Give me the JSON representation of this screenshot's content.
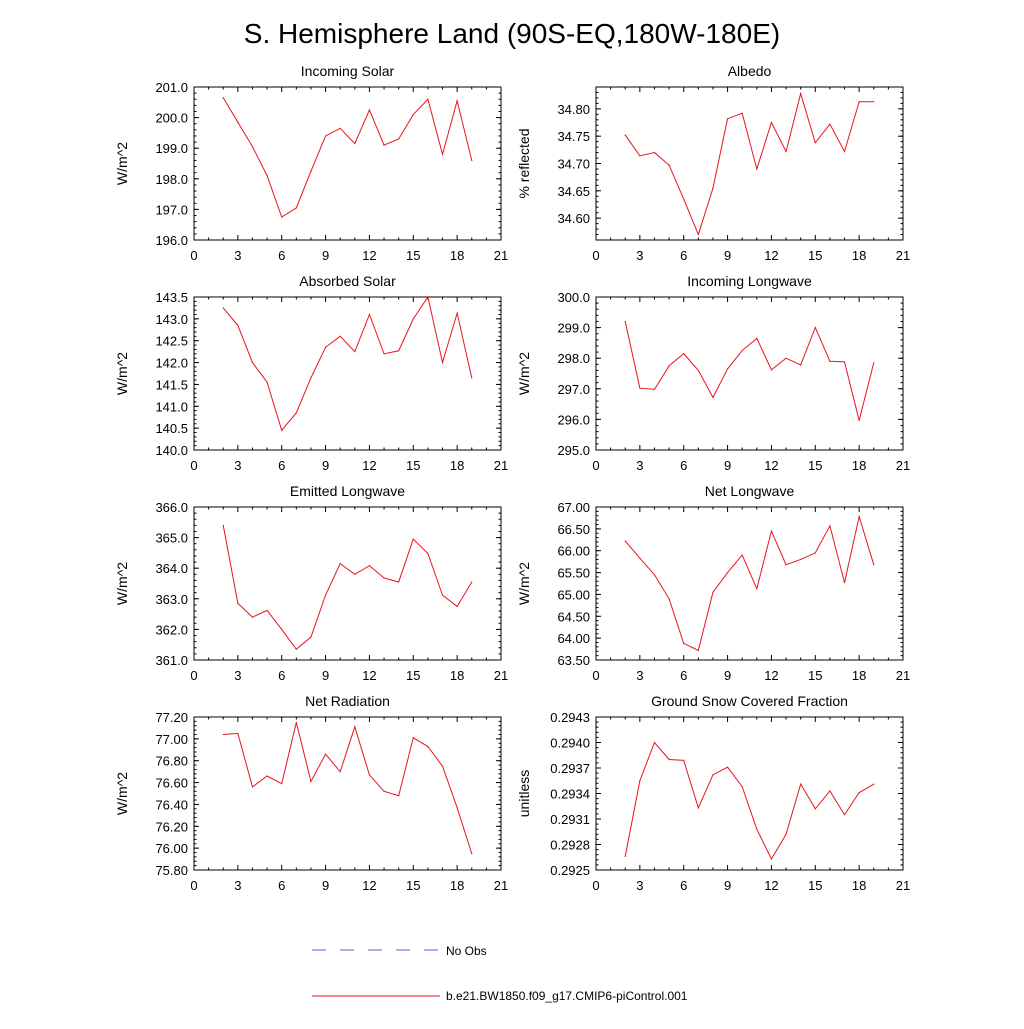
{
  "title": "S. Hemisphere Land (90S-EQ,180W-180E)",
  "legend": {
    "items": [
      {
        "label": "No Obs",
        "style": "dashed",
        "color": "#5b5bd6"
      },
      {
        "label": "b.e21.BW1850.f09_g17.CMIP6-piControl.001",
        "style": "solid",
        "color": "#e8141c"
      }
    ]
  },
  "chart_data": [
    {
      "type": "line",
      "title": "Incoming Solar",
      "xlabel": "",
      "ylabel": "W/m^2",
      "xlim": [
        0,
        21
      ],
      "ylim": [
        196.0,
        201.0
      ],
      "xticks": [
        0,
        3,
        6,
        9,
        12,
        15,
        18,
        21
      ],
      "yticks": [
        196.0,
        197.0,
        198.0,
        199.0,
        200.0,
        201.0
      ],
      "ytick_labels": [
        "196.0",
        "197.0",
        "198.0",
        "199.0",
        "200.0",
        "201.0"
      ],
      "series": [
        {
          "name": "b.e21.BW1850.f09_g17.CMIP6-piControl.001",
          "color": "#e8141c",
          "x": [
            2,
            3,
            4,
            5,
            6,
            7,
            8,
            9,
            10,
            11,
            12,
            13,
            14,
            15,
            16,
            17,
            18,
            19
          ],
          "y": [
            200.65,
            199.85,
            199.05,
            198.1,
            196.75,
            197.05,
            198.25,
            199.4,
            199.65,
            199.15,
            200.25,
            199.1,
            199.3,
            200.1,
            200.6,
            198.8,
            200.55,
            198.6
          ]
        }
      ]
    },
    {
      "type": "line",
      "title": "Albedo",
      "xlabel": "",
      "ylabel": "% reflected",
      "xlim": [
        0,
        21
      ],
      "ylim": [
        34.56,
        34.84
      ],
      "xticks": [
        0,
        3,
        6,
        9,
        12,
        15,
        18,
        21
      ],
      "yticks": [
        34.6,
        34.65,
        34.7,
        34.75,
        34.8
      ],
      "ytick_labels": [
        "34.60",
        "34.65",
        "34.70",
        "34.75",
        "34.80"
      ],
      "series": [
        {
          "name": "b.e21.BW1850.f09_g17.CMIP6-piControl.001",
          "color": "#e8141c",
          "x": [
            2,
            3,
            4,
            5,
            6,
            7,
            8,
            9,
            10,
            11,
            12,
            13,
            14,
            15,
            16,
            17,
            18,
            19
          ],
          "y": [
            34.752,
            34.714,
            34.72,
            34.697,
            34.635,
            34.57,
            34.655,
            34.782,
            34.792,
            34.69,
            34.775,
            34.722,
            34.828,
            34.738,
            34.772,
            34.722,
            34.813,
            34.813
          ]
        }
      ]
    },
    {
      "type": "line",
      "title": "Absorbed Solar",
      "xlabel": "",
      "ylabel": "W/m^2",
      "xlim": [
        0,
        21
      ],
      "ylim": [
        140.0,
        143.5
      ],
      "xticks": [
        0,
        3,
        6,
        9,
        12,
        15,
        18,
        21
      ],
      "yticks": [
        140.0,
        140.5,
        141.0,
        141.5,
        142.0,
        142.5,
        143.0,
        143.5
      ],
      "ytick_labels": [
        "140.0",
        "140.5",
        "141.0",
        "141.5",
        "142.0",
        "142.5",
        "143.0",
        "143.5"
      ],
      "series": [
        {
          "name": "b.e21.BW1850.f09_g17.CMIP6-piControl.001",
          "color": "#e8141c",
          "x": [
            2,
            3,
            4,
            5,
            6,
            7,
            8,
            9,
            10,
            11,
            12,
            13,
            14,
            15,
            16,
            17,
            18,
            19
          ],
          "y": [
            143.25,
            142.85,
            142.0,
            141.55,
            140.45,
            140.85,
            141.65,
            142.35,
            142.6,
            142.25,
            143.1,
            142.2,
            142.27,
            143.0,
            143.5,
            142.0,
            143.13,
            141.65
          ]
        }
      ]
    },
    {
      "type": "line",
      "title": "Incoming Longwave",
      "xlabel": "",
      "ylabel": "W/m^2",
      "xlim": [
        0,
        21
      ],
      "ylim": [
        295.0,
        300.0
      ],
      "xticks": [
        0,
        3,
        6,
        9,
        12,
        15,
        18,
        21
      ],
      "yticks": [
        295.0,
        296.0,
        297.0,
        298.0,
        299.0,
        300.0
      ],
      "ytick_labels": [
        "295.0",
        "296.0",
        "297.0",
        "298.0",
        "299.0",
        "300.0"
      ],
      "series": [
        {
          "name": "b.e21.BW1850.f09_g17.CMIP6-piControl.001",
          "color": "#e8141c",
          "x": [
            2,
            3,
            4,
            5,
            6,
            7,
            8,
            9,
            10,
            11,
            12,
            13,
            14,
            15,
            16,
            17,
            18,
            19
          ],
          "y": [
            299.2,
            297.02,
            296.98,
            297.75,
            298.15,
            297.6,
            296.72,
            297.65,
            298.25,
            298.65,
            297.62,
            298.0,
            297.78,
            299.0,
            297.9,
            297.88,
            295.97,
            297.85
          ]
        }
      ]
    },
    {
      "type": "line",
      "title": "Emitted Longwave",
      "xlabel": "",
      "ylabel": "W/m^2",
      "xlim": [
        0,
        21
      ],
      "ylim": [
        361.0,
        366.0
      ],
      "xticks": [
        0,
        3,
        6,
        9,
        12,
        15,
        18,
        21
      ],
      "yticks": [
        361.0,
        362.0,
        363.0,
        364.0,
        365.0,
        366.0
      ],
      "ytick_labels": [
        "361.0",
        "362.0",
        "363.0",
        "364.0",
        "365.0",
        "366.0"
      ],
      "series": [
        {
          "name": "b.e21.BW1850.f09_g17.CMIP6-piControl.001",
          "color": "#e8141c",
          "x": [
            2,
            3,
            4,
            5,
            6,
            7,
            8,
            9,
            10,
            11,
            12,
            13,
            14,
            15,
            16,
            17,
            18,
            19
          ],
          "y": [
            365.4,
            362.85,
            362.4,
            362.62,
            362.0,
            361.35,
            361.75,
            363.12,
            364.15,
            363.8,
            364.08,
            363.68,
            363.55,
            364.95,
            364.48,
            363.12,
            362.75,
            363.55
          ]
        }
      ]
    },
    {
      "type": "line",
      "title": "Net Longwave",
      "xlabel": "",
      "ylabel": "W/m^2",
      "xlim": [
        0,
        21
      ],
      "ylim": [
        63.5,
        67.0
      ],
      "xticks": [
        0,
        3,
        6,
        9,
        12,
        15,
        18,
        21
      ],
      "yticks": [
        63.5,
        64.0,
        64.5,
        65.0,
        65.5,
        66.0,
        66.5,
        67.0
      ],
      "ytick_labels": [
        "63.50",
        "64.00",
        "64.50",
        "65.00",
        "65.50",
        "66.00",
        "66.50",
        "67.00"
      ],
      "series": [
        {
          "name": "b.e21.BW1850.f09_g17.CMIP6-piControl.001",
          "color": "#e8141c",
          "x": [
            2,
            3,
            4,
            5,
            6,
            7,
            8,
            9,
            10,
            11,
            12,
            13,
            14,
            15,
            16,
            17,
            18,
            19
          ],
          "y": [
            66.22,
            65.83,
            65.45,
            64.9,
            63.88,
            63.72,
            65.05,
            65.5,
            65.9,
            65.13,
            66.45,
            65.68,
            65.8,
            65.95,
            66.57,
            65.27,
            66.78,
            65.68
          ]
        }
      ]
    },
    {
      "type": "line",
      "title": "Net Radiation",
      "xlabel": "",
      "ylabel": "W/m^2",
      "xlim": [
        0,
        21
      ],
      "ylim": [
        75.8,
        77.2
      ],
      "xticks": [
        0,
        3,
        6,
        9,
        12,
        15,
        18,
        21
      ],
      "yticks": [
        75.8,
        76.0,
        76.2,
        76.4,
        76.6,
        76.8,
        77.0,
        77.2
      ],
      "ytick_labels": [
        "75.80",
        "76.00",
        "76.20",
        "76.40",
        "76.60",
        "76.80",
        "77.00",
        "77.20"
      ],
      "series": [
        {
          "name": "b.e21.BW1850.f09_g17.CMIP6-piControl.001",
          "color": "#e8141c",
          "x": [
            2,
            3,
            4,
            5,
            6,
            7,
            8,
            9,
            10,
            11,
            12,
            13,
            14,
            15,
            16,
            17,
            18,
            19
          ],
          "y": [
            77.04,
            77.05,
            76.56,
            76.66,
            76.59,
            77.15,
            76.61,
            76.86,
            76.7,
            77.11,
            76.67,
            76.52,
            76.48,
            77.01,
            76.93,
            76.75,
            76.37,
            75.95
          ]
        }
      ]
    },
    {
      "type": "line",
      "title": "Ground Snow Covered Fraction",
      "xlabel": "",
      "ylabel": "unitless",
      "xlim": [
        0,
        21
      ],
      "ylim": [
        0.2925,
        0.2943
      ],
      "xticks": [
        0,
        3,
        6,
        9,
        12,
        15,
        18,
        21
      ],
      "yticks": [
        0.2925,
        0.2928,
        0.2931,
        0.2934,
        0.2937,
        0.294,
        0.2943
      ],
      "ytick_labels": [
        "0.2925",
        "0.2928",
        "0.2931",
        "0.2934",
        "0.2937",
        "0.2940",
        "0.2943"
      ],
      "series": [
        {
          "name": "b.e21.BW1850.f09_g17.CMIP6-piControl.001",
          "color": "#e8141c",
          "x": [
            2,
            3,
            4,
            5,
            6,
            7,
            8,
            9,
            10,
            11,
            12,
            13,
            14,
            15,
            16,
            17,
            18,
            19
          ],
          "y": [
            0.29266,
            0.29355,
            0.294,
            0.2938,
            0.29379,
            0.29323,
            0.29362,
            0.29371,
            0.29348,
            0.29298,
            0.29263,
            0.29292,
            0.29351,
            0.29322,
            0.29343,
            0.29315,
            0.29341,
            0.29351
          ]
        }
      ]
    }
  ]
}
